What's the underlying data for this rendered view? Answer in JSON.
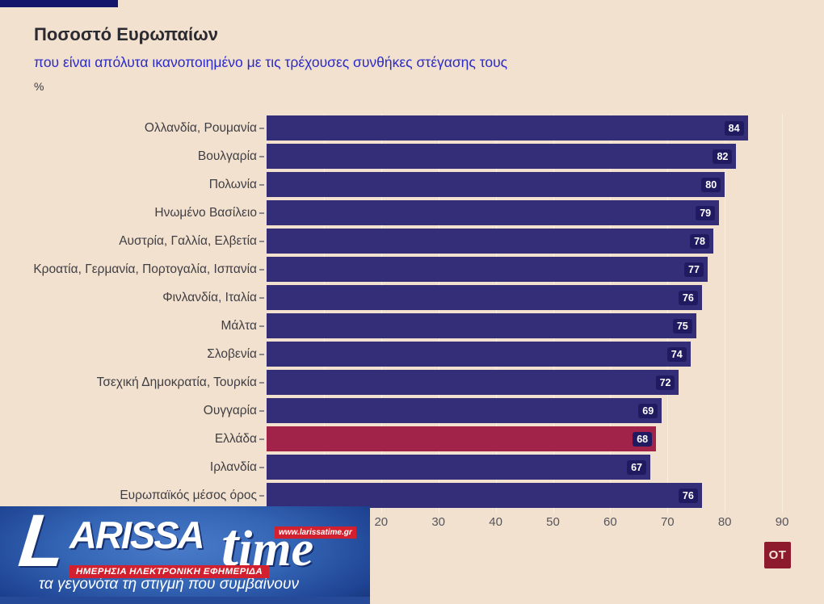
{
  "chart_data": {
    "type": "bar",
    "orientation": "horizontal",
    "title": "Ποσοστό Ευρωπαίων",
    "subtitle": "που είναι απόλυτα ικανοποιημένο με τις τρέχουσες συνθήκες στέγασης τους",
    "unit": "%",
    "categories": [
      "Ολλανδία, Ρουμανία",
      "Βουλγαρία",
      "Πολωνία",
      "Ηνωμένο Βασίλειο",
      "Αυστρία, Γαλλία, Ελβετία",
      "Κροατία, Γερμανία, Πορτογαλία, Ισπανία",
      "Φινλανδία, Ιταλία",
      "Μάλτα",
      "Σλοβενία",
      "Τσεχική Δημοκρατία, Τουρκία",
      "Ουγγαρία",
      "Ελλάδα",
      "Ιρλανδία",
      "Ευρωπαϊκός μέσος όρος"
    ],
    "values": [
      84,
      82,
      80,
      79,
      78,
      77,
      76,
      75,
      74,
      72,
      69,
      68,
      67,
      76
    ],
    "highlight_index": 11,
    "highlight_category": "Ελλάδα",
    "xlim": [
      0,
      90
    ],
    "x_ticks": [
      20,
      30,
      40,
      50,
      60,
      70,
      80,
      90
    ],
    "x_grid": [
      10,
      20,
      30,
      40,
      50,
      60,
      70,
      80,
      90
    ],
    "grid": true,
    "legend": false,
    "colors": {
      "bar": "#342e78",
      "highlight_bar": "#a22349",
      "value_chip_bg": "#201b60",
      "value_chip_text": "#ffffff",
      "background": "#f2e1ce",
      "accent_bar": "#14166b"
    }
  },
  "branding": {
    "larissatime": {
      "l": "L",
      "name": "ARISSA",
      "time_t": "t",
      "time_rest": "ime",
      "url": "www.larissatime.gr",
      "strip": "ΗΜΕΡΗΣΙΑ ΗΛΕΚΤΡΟΝΙΚΗ ΕΦΗΜΕΡΙΔΑ",
      "tagline": "τα γεγονότα τη στιγμή που συμβαίνουν"
    },
    "ot": "OT"
  }
}
